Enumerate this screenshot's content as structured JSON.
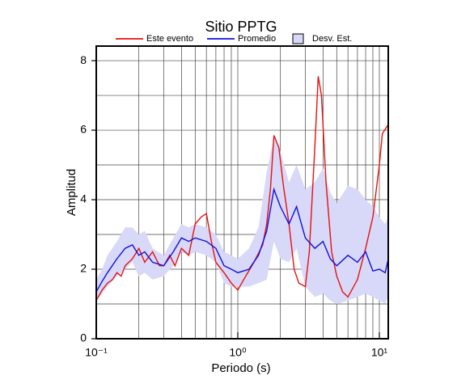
{
  "chart_data": {
    "type": "line",
    "title": "Sitio PPTG",
    "xlabel": "Periodo (s)",
    "ylabel": "Amplitud",
    "xscale": "log",
    "xlim": [
      0.1,
      11.56
    ],
    "ylim": [
      0,
      8.42
    ],
    "xticks": [
      {
        "value": 0.1,
        "label": "10⁻¹"
      },
      {
        "value": 1,
        "label": "10⁰"
      },
      {
        "value": 10,
        "label": "10¹"
      }
    ],
    "xminor": [
      0.2,
      0.3,
      0.4,
      0.5,
      0.6,
      0.7,
      0.8,
      0.9,
      2,
      3,
      4,
      5,
      6,
      7,
      8,
      9
    ],
    "yticks": [
      0,
      2,
      4,
      6,
      8
    ],
    "yminor": [
      1,
      3,
      5,
      7
    ],
    "grid": true,
    "series": [
      {
        "name": "Este evento",
        "color": "#e81010",
        "x": [
          0.1,
          0.11,
          0.12,
          0.13,
          0.14,
          0.15,
          0.16,
          0.18,
          0.2,
          0.22,
          0.25,
          0.28,
          0.3,
          0.33,
          0.36,
          0.4,
          0.45,
          0.5,
          0.55,
          0.6,
          0.65,
          0.7,
          0.8,
          0.9,
          1.0,
          1.1,
          1.3,
          1.5,
          1.6,
          1.7,
          1.8,
          1.95,
          2.1,
          2.3,
          2.5,
          2.7,
          3.0,
          3.2,
          3.5,
          3.7,
          3.9,
          4.2,
          4.6,
          5.0,
          5.5,
          6,
          7,
          8,
          9,
          10,
          10.5,
          11.5
        ],
        "values": [
          1.1,
          1.4,
          1.6,
          1.7,
          1.9,
          1.8,
          2.1,
          2.3,
          2.6,
          2.2,
          2.5,
          2.1,
          2.1,
          2.4,
          2.1,
          2.6,
          2.4,
          3.3,
          3.5,
          3.6,
          2.8,
          2.2,
          1.9,
          1.6,
          1.4,
          1.7,
          2.2,
          2.7,
          3.3,
          4.3,
          5.85,
          5.5,
          4.4,
          3.3,
          2.0,
          1.6,
          1.5,
          2.5,
          5.5,
          7.55,
          7.0,
          4.5,
          2.5,
          1.8,
          1.35,
          1.2,
          1.7,
          2.6,
          3.5,
          5.0,
          5.9,
          6.15
        ]
      },
      {
        "name": "Promedio",
        "color": "#1010dd",
        "x": [
          0.1,
          0.11,
          0.12,
          0.14,
          0.16,
          0.18,
          0.2,
          0.22,
          0.25,
          0.3,
          0.35,
          0.4,
          0.45,
          0.5,
          0.6,
          0.7,
          0.8,
          0.9,
          1.0,
          1.2,
          1.4,
          1.6,
          1.8,
          2.0,
          2.3,
          2.6,
          3.0,
          3.5,
          4,
          4.5,
          5,
          6,
          7,
          8,
          9,
          10,
          11,
          11.5
        ],
        "values": [
          1.35,
          1.65,
          1.9,
          2.3,
          2.6,
          2.7,
          2.4,
          2.5,
          2.2,
          2.1,
          2.5,
          2.9,
          2.8,
          2.9,
          2.8,
          2.6,
          2.1,
          2.0,
          1.9,
          2.0,
          2.4,
          3.1,
          4.3,
          3.8,
          3.3,
          3.8,
          2.9,
          2.6,
          2.8,
          2.3,
          2.1,
          2.4,
          2.2,
          2.5,
          1.95,
          2.0,
          1.9,
          2.25
        ]
      },
      {
        "name": "Desv. Est.",
        "color": "#d8d8f8",
        "x": [
          0.1,
          0.11,
          0.12,
          0.14,
          0.16,
          0.18,
          0.2,
          0.22,
          0.25,
          0.3,
          0.35,
          0.4,
          0.45,
          0.5,
          0.6,
          0.7,
          0.8,
          0.9,
          1.0,
          1.2,
          1.4,
          1.6,
          1.8,
          2.0,
          2.3,
          2.6,
          3.0,
          3.5,
          4,
          4.5,
          5,
          6,
          7,
          8,
          9,
          10,
          11,
          11.5
        ],
        "upper": [
          1.7,
          2.0,
          2.4,
          2.8,
          3.2,
          3.2,
          3.0,
          3.1,
          2.6,
          2.4,
          2.9,
          3.3,
          3.2,
          3.3,
          3.2,
          3.0,
          2.5,
          2.4,
          2.3,
          2.6,
          3.2,
          4.8,
          5.8,
          5.4,
          4.5,
          5.0,
          4.3,
          4.5,
          4.9,
          4.2,
          3.9,
          4.4,
          4.3,
          4.0,
          3.8,
          3.5,
          3.3,
          3.5
        ],
        "lower": [
          1.1,
          1.3,
          1.5,
          1.8,
          2.0,
          2.2,
          1.8,
          1.9,
          1.7,
          1.8,
          2.1,
          2.5,
          2.4,
          2.5,
          2.4,
          2.2,
          1.6,
          1.5,
          1.5,
          1.5,
          1.6,
          1.7,
          2.8,
          2.3,
          2.2,
          2.6,
          1.5,
          1.2,
          1.3,
          1.1,
          1.0,
          1.1,
          1.2,
          1.3,
          1.2,
          1.1,
          1.0,
          1.2
        ]
      }
    ]
  }
}
